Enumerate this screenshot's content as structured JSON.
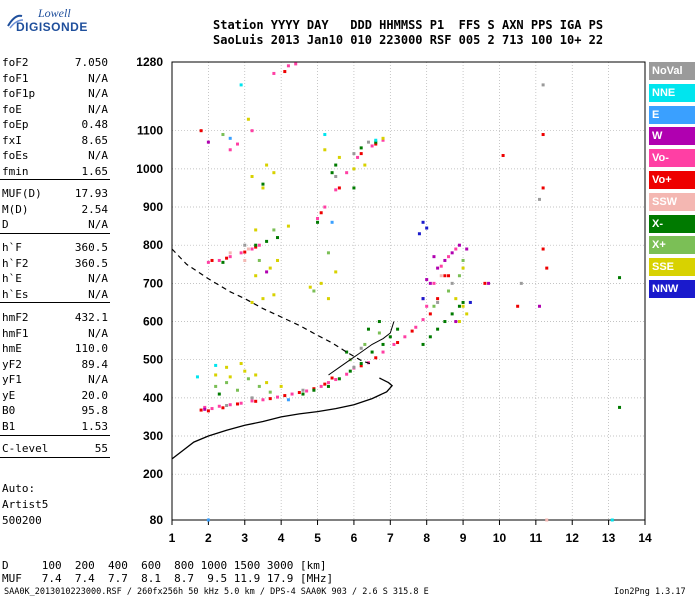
{
  "logo": {
    "line1": "Lowell",
    "line2": "DIGISONDE"
  },
  "header": {
    "row1": "Station YYYY DAY   DDD HHMMSS P1  FFS S AXN PPS IGA PS",
    "row2": "SaoLuis 2013 Jan10 010 223000 RSF 005 2 713 100 10+ 22"
  },
  "params": [
    {
      "k": "foF2",
      "v": "7.050"
    },
    {
      "k": "foF1",
      "v": "N/A"
    },
    {
      "k": "foF1p",
      "v": "N/A"
    },
    {
      "k": "foE",
      "v": "N/A"
    },
    {
      "k": "foEp",
      "v": "0.48"
    },
    {
      "k": "fxI",
      "v": "8.65"
    },
    {
      "k": "foEs",
      "v": "N/A"
    },
    {
      "k": "fmin",
      "v": "1.65"
    },
    {
      "k": "MUF(D)",
      "v": "17.93"
    },
    {
      "k": "M(D)",
      "v": "2.54"
    },
    {
      "k": "D",
      "v": "N/A"
    },
    {
      "k": "h`F",
      "v": "360.5"
    },
    {
      "k": "h`F2",
      "v": "360.5"
    },
    {
      "k": "h`E",
      "v": "N/A"
    },
    {
      "k": "h`Es",
      "v": "N/A"
    },
    {
      "k": "hmF2",
      "v": "432.1"
    },
    {
      "k": "hmF1",
      "v": "N/A"
    },
    {
      "k": "hmE",
      "v": "110.0"
    },
    {
      "k": "yF2",
      "v": "89.4"
    },
    {
      "k": "yF1",
      "v": "N/A"
    },
    {
      "k": "yE",
      "v": "20.0"
    },
    {
      "k": "B0",
      "v": "95.8"
    },
    {
      "k": "B1",
      "v": "1.53"
    },
    {
      "k": "C-level",
      "v": "55"
    }
  ],
  "auto": {
    "line1": "Auto:",
    "line2": "Artist5",
    "line3": "500200"
  },
  "legend": [
    {
      "label": "NoVal",
      "color": "#9a9a9a"
    },
    {
      "label": "NNE",
      "color": "#00e5ee"
    },
    {
      "label": "E",
      "color": "#3aa0ff"
    },
    {
      "label": "W",
      "color": "#b000b0"
    },
    {
      "label": "Vo-",
      "color": "#ff3fa4"
    },
    {
      "label": "Vo+",
      "color": "#ee0000"
    },
    {
      "label": "SSW",
      "color": "#f4b7b2"
    },
    {
      "label": "X-",
      "color": "#007a00"
    },
    {
      "label": "X+",
      "color": "#7bbf56"
    },
    {
      "label": "SSE",
      "color": "#d8d200"
    },
    {
      "label": "NNW",
      "color": "#1a1acc"
    }
  ],
  "footer": {
    "d_row": "D     100  200  400  600  800 1000 1500 3000 [km]",
    "muf_row": "MUF   7.4  7.4  7.7  8.1  8.7  9.5 11.9 17.9 [MHz]",
    "file": "SAA0K_2013010223000.RSF / 260fx256h 50 kHz 5.0 km / DPS-4 SAA0K 903 / 2.6 S 315.8 E",
    "version": "Ion2Png 1.3.17"
  },
  "chart_data": {
    "type": "scatter",
    "xlim": [
      1,
      14
    ],
    "ylim": [
      80,
      1280
    ],
    "x_ticks": [
      "1",
      "2",
      "3",
      "4",
      "5",
      "6",
      "7",
      "8",
      "9",
      "10",
      "11",
      "12",
      "13",
      "14"
    ],
    "y_ticks": [
      "80",
      "200",
      "300",
      "400",
      "500",
      "600",
      "700",
      "800",
      "900",
      "1000",
      "1100",
      "1280"
    ],
    "grid": true,
    "legend_placement": "right",
    "series": [
      {
        "name": "Vo-",
        "color": "#ff3fa4",
        "points": [
          [
            1.9,
            375
          ],
          [
            2.1,
            372
          ],
          [
            2.3,
            378
          ],
          [
            2.6,
            382
          ],
          [
            2.9,
            386
          ],
          [
            3.2,
            392
          ],
          [
            3.5,
            395
          ],
          [
            3.9,
            402
          ],
          [
            4.3,
            410
          ],
          [
            4.7,
            418
          ],
          [
            5.1,
            430
          ],
          [
            5.3,
            440
          ],
          [
            5.5,
            448
          ],
          [
            5.8,
            462
          ],
          [
            6.0,
            478
          ],
          [
            6.4,
            492
          ],
          [
            6.8,
            520
          ],
          [
            7.1,
            540
          ],
          [
            7.4,
            560
          ],
          [
            7.7,
            585
          ],
          [
            7.9,
            605
          ],
          [
            8.0,
            640
          ],
          [
            8.2,
            700
          ],
          [
            8.4,
            745
          ],
          [
            8.6,
            770
          ],
          [
            8.8,
            790
          ],
          [
            2.0,
            755
          ],
          [
            2.3,
            760
          ],
          [
            2.6,
            770
          ],
          [
            2.9,
            780
          ],
          [
            3.2,
            790
          ],
          [
            3.4,
            800
          ],
          [
            5.0,
            870
          ],
          [
            5.2,
            900
          ],
          [
            5.5,
            945
          ],
          [
            5.8,
            990
          ],
          [
            6.1,
            1030
          ],
          [
            6.5,
            1060
          ],
          [
            6.8,
            1075
          ],
          [
            3.8,
            1250
          ],
          [
            4.2,
            1270
          ],
          [
            4.4,
            1275
          ],
          [
            2.6,
            1050
          ],
          [
            2.8,
            1065
          ],
          [
            3.2,
            1100
          ]
        ]
      },
      {
        "name": "Vo+",
        "color": "#ee0000",
        "points": [
          [
            1.8,
            368
          ],
          [
            2.0,
            366
          ],
          [
            2.4,
            374
          ],
          [
            2.8,
            384
          ],
          [
            3.3,
            391
          ],
          [
            3.7,
            398
          ],
          [
            4.1,
            406
          ],
          [
            4.5,
            414
          ],
          [
            4.9,
            424
          ],
          [
            5.2,
            436
          ],
          [
            5.4,
            452
          ],
          [
            6.2,
            484
          ],
          [
            6.6,
            505
          ],
          [
            7.2,
            545
          ],
          [
            7.6,
            575
          ],
          [
            8.1,
            620
          ],
          [
            8.3,
            660
          ],
          [
            8.5,
            720
          ],
          [
            2.1,
            760
          ],
          [
            2.5,
            766
          ],
          [
            3.0,
            782
          ],
          [
            3.3,
            795
          ],
          [
            5.1,
            885
          ],
          [
            5.6,
            950
          ],
          [
            6.2,
            1040
          ],
          [
            6.6,
            1065
          ],
          [
            4.1,
            1255
          ],
          [
            11.2,
            1090
          ],
          [
            11.2,
            950
          ],
          [
            10.1,
            1035
          ],
          [
            8.6,
            720
          ],
          [
            10.5,
            640
          ],
          [
            11.2,
            790
          ],
          [
            1.8,
            1100
          ],
          [
            9.6,
            700
          ],
          [
            11.3,
            740
          ]
        ]
      },
      {
        "name": "W",
        "color": "#b000b0",
        "points": [
          [
            7.9,
            660
          ],
          [
            8.1,
            700
          ],
          [
            8.3,
            740
          ],
          [
            8.5,
            760
          ],
          [
            8.7,
            780
          ],
          [
            8.9,
            800
          ],
          [
            9.1,
            790
          ],
          [
            8.2,
            770
          ],
          [
            8.0,
            710
          ],
          [
            2.0,
            1070
          ],
          [
            1.9,
            370
          ],
          [
            3.6,
            730
          ],
          [
            11.1,
            640
          ],
          [
            9.7,
            700
          ],
          [
            8.8,
            600
          ]
        ]
      },
      {
        "name": "X-",
        "color": "#007a00",
        "points": [
          [
            5.6,
            450
          ],
          [
            5.9,
            470
          ],
          [
            6.2,
            490
          ],
          [
            6.5,
            520
          ],
          [
            6.8,
            540
          ],
          [
            7.0,
            560
          ],
          [
            7.2,
            580
          ],
          [
            6.4,
            580
          ],
          [
            6.7,
            600
          ],
          [
            7.9,
            540
          ],
          [
            8.1,
            560
          ],
          [
            8.3,
            580
          ],
          [
            8.5,
            600
          ],
          [
            8.7,
            620
          ],
          [
            8.9,
            640
          ],
          [
            9.0,
            650
          ],
          [
            4.6,
            410
          ],
          [
            4.9,
            420
          ],
          [
            5.3,
            430
          ],
          [
            3.3,
            800
          ],
          [
            3.6,
            810
          ],
          [
            3.9,
            820
          ],
          [
            5.4,
            990
          ],
          [
            5.5,
            1010
          ],
          [
            6.2,
            1055
          ],
          [
            6.6,
            1070
          ],
          [
            2.4,
            755
          ],
          [
            5.0,
            860
          ],
          [
            13.3,
            715
          ],
          [
            13.3,
            375
          ],
          [
            6.0,
            950
          ],
          [
            5.8,
            520
          ],
          [
            3.5,
            960
          ],
          [
            2.3,
            410
          ]
        ]
      },
      {
        "name": "X+",
        "color": "#7bbf56",
        "points": [
          [
            2.2,
            430
          ],
          [
            2.5,
            440
          ],
          [
            2.8,
            420
          ],
          [
            3.1,
            450
          ],
          [
            3.4,
            430
          ],
          [
            3.7,
            415
          ],
          [
            8.2,
            640
          ],
          [
            8.6,
            680
          ],
          [
            8.9,
            720
          ],
          [
            9.0,
            760
          ],
          [
            5.9,
            500
          ],
          [
            6.3,
            540
          ],
          [
            6.7,
            570
          ],
          [
            3.4,
            760
          ],
          [
            3.8,
            840
          ],
          [
            2.4,
            1090
          ],
          [
            5.3,
            780
          ],
          [
            4.9,
            680
          ]
        ]
      },
      {
        "name": "SSE",
        "color": "#d8d200",
        "points": [
          [
            2.2,
            460
          ],
          [
            2.6,
            455
          ],
          [
            3.0,
            470
          ],
          [
            3.3,
            460
          ],
          [
            3.6,
            440
          ],
          [
            4.0,
            430
          ],
          [
            3.2,
            650
          ],
          [
            3.5,
            660
          ],
          [
            3.8,
            670
          ],
          [
            3.3,
            720
          ],
          [
            3.7,
            740
          ],
          [
            3.9,
            760
          ],
          [
            3.5,
            950
          ],
          [
            3.2,
            980
          ],
          [
            3.8,
            990
          ],
          [
            3.6,
            1010
          ],
          [
            4.8,
            690
          ],
          [
            5.1,
            700
          ],
          [
            5.3,
            660
          ],
          [
            5.5,
            730
          ],
          [
            8.9,
            600
          ],
          [
            9.1,
            620
          ],
          [
            9.0,
            740
          ],
          [
            8.8,
            660
          ],
          [
            5.2,
            1050
          ],
          [
            5.6,
            1030
          ],
          [
            6.0,
            1000
          ],
          [
            6.3,
            1010
          ],
          [
            3.1,
            1130
          ],
          [
            2.5,
            480
          ],
          [
            2.9,
            490
          ],
          [
            6.8,
            1080
          ],
          [
            9.0,
            640
          ],
          [
            3.3,
            840
          ],
          [
            4.2,
            850
          ]
        ]
      },
      {
        "name": "NNW",
        "color": "#1a1acc",
        "points": [
          [
            7.8,
            830
          ],
          [
            7.9,
            860
          ],
          [
            8.0,
            845
          ],
          [
            9.2,
            650
          ],
          [
            7.9,
            660
          ]
        ]
      },
      {
        "name": "NNE",
        "color": "#00e5ee",
        "points": [
          [
            2.2,
            485
          ],
          [
            1.7,
            455
          ],
          [
            5.2,
            1090
          ],
          [
            13.1,
            80
          ],
          [
            2.9,
            1220
          ],
          [
            6.6,
            1075
          ]
        ]
      },
      {
        "name": "E",
        "color": "#3aa0ff",
        "points": [
          [
            2.0,
            80
          ],
          [
            4.2,
            395
          ],
          [
            5.4,
            860
          ],
          [
            2.6,
            1080
          ]
        ]
      },
      {
        "name": "SSW",
        "color": "#f4b7b2",
        "points": [
          [
            2.6,
            780
          ],
          [
            3.0,
            760
          ],
          [
            8.4,
            720
          ],
          [
            11.3,
            80
          ],
          [
            3.1,
            790
          ]
        ]
      },
      {
        "name": "NoVal",
        "color": "#9a9a9a",
        "points": [
          [
            2.5,
            380
          ],
          [
            3.2,
            400
          ],
          [
            4.6,
            420
          ],
          [
            6.0,
            480
          ],
          [
            6.2,
            530
          ],
          [
            8.3,
            650
          ],
          [
            8.7,
            700
          ],
          [
            3.0,
            800
          ],
          [
            5.5,
            980
          ],
          [
            6.0,
            1040
          ],
          [
            11.2,
            1220
          ],
          [
            6.4,
            1070
          ],
          [
            11.1,
            920
          ],
          [
            10.6,
            700
          ]
        ]
      }
    ],
    "profile_curve": [
      [
        1,
        240
      ],
      [
        1.3,
        262
      ],
      [
        1.6,
        284
      ],
      [
        2.0,
        300
      ],
      [
        2.5,
        315
      ],
      [
        3.0,
        328
      ],
      [
        3.5,
        338
      ],
      [
        4.0,
        350
      ],
      [
        4.5,
        358
      ],
      [
        5.0,
        364
      ],
      [
        5.5,
        372
      ],
      [
        6.0,
        382
      ],
      [
        6.5,
        398
      ],
      [
        6.9,
        416
      ],
      [
        7.05,
        432
      ],
      [
        6.95,
        440
      ],
      [
        6.7,
        452
      ]
    ],
    "iri_curve": [
      [
        1,
        790
      ],
      [
        1.4,
        750
      ],
      [
        2.0,
        712
      ],
      [
        2.6,
        678
      ],
      [
        3.0,
        660
      ],
      [
        3.5,
        634
      ],
      [
        4.0,
        612
      ],
      [
        4.5,
        590
      ],
      [
        5.0,
        564
      ],
      [
        5.4,
        544
      ],
      [
        5.8,
        520
      ],
      [
        6.2,
        498
      ],
      [
        6.5,
        488
      ]
    ],
    "trace_curve": [
      [
        5.3,
        460
      ],
      [
        5.6,
        480
      ],
      [
        5.9,
        500
      ],
      [
        6.2,
        520
      ],
      [
        6.5,
        540
      ],
      [
        6.8,
        555
      ],
      [
        7.0,
        570
      ],
      [
        7.1,
        600
      ]
    ]
  }
}
